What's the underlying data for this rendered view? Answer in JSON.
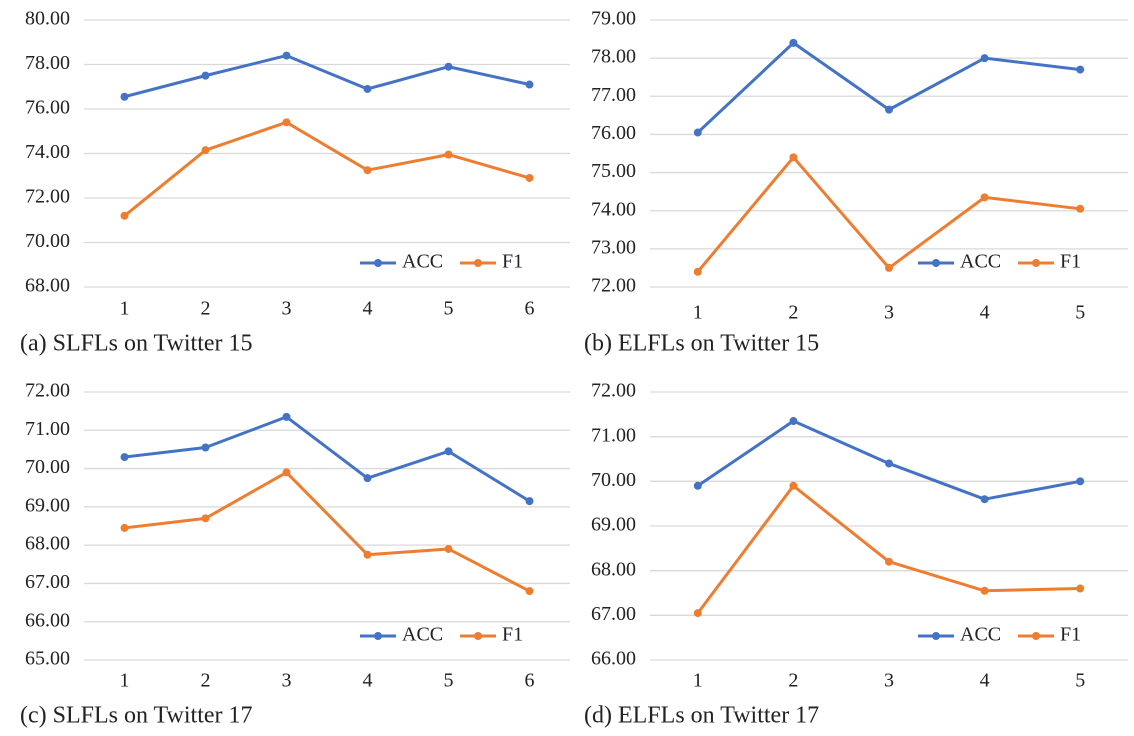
{
  "chart_data": [
    {
      "type": "line",
      "title": "(a) SLFLs on Twitter 15",
      "categories": [
        "1",
        "2",
        "3",
        "4",
        "5",
        "6"
      ],
      "series": [
        {
          "name": "ACC",
          "color": "#4472c4",
          "values": [
            76.55,
            77.5,
            78.4,
            76.9,
            77.9,
            77.1
          ]
        },
        {
          "name": "F1",
          "color": "#ed7d31",
          "values": [
            71.2,
            74.15,
            75.4,
            73.25,
            73.95,
            72.9
          ]
        }
      ],
      "ylim": [
        68,
        80
      ],
      "yticks": [
        {
          "value": 68,
          "label": "68.00"
        },
        {
          "value": 70,
          "label": "70.00"
        },
        {
          "value": 72,
          "label": "72.00"
        },
        {
          "value": 74,
          "label": "74.00"
        },
        {
          "value": 76,
          "label": "76.00"
        },
        {
          "value": 78,
          "label": "78.00"
        },
        {
          "value": 80,
          "label": "80.00"
        }
      ],
      "grid": true,
      "legend": "lower-right"
    },
    {
      "type": "line",
      "title": "(b) ELFLs on Twitter 15",
      "categories": [
        "1",
        "2",
        "3",
        "4",
        "5"
      ],
      "series": [
        {
          "name": "ACC",
          "color": "#4472c4",
          "values": [
            76.05,
            78.4,
            76.65,
            78.0,
            77.7
          ]
        },
        {
          "name": "F1",
          "color": "#ed7d31",
          "values": [
            72.4,
            75.4,
            72.5,
            74.35,
            74.05
          ]
        }
      ],
      "ylim": [
        72,
        79
      ],
      "yticks": [
        {
          "value": 72,
          "label": "72.00"
        },
        {
          "value": 73,
          "label": "73.00"
        },
        {
          "value": 74,
          "label": "74.00"
        },
        {
          "value": 75,
          "label": "75.00"
        },
        {
          "value": 76,
          "label": "76.00"
        },
        {
          "value": 77,
          "label": "77.00"
        },
        {
          "value": 78,
          "label": "78.00"
        },
        {
          "value": 79,
          "label": "79.00"
        }
      ],
      "grid": true,
      "legend": "lower-right"
    },
    {
      "type": "line",
      "title": "(c) SLFLs on Twitter 17",
      "categories": [
        "1",
        "2",
        "3",
        "4",
        "5",
        "6"
      ],
      "series": [
        {
          "name": "ACC",
          "color": "#4472c4",
          "values": [
            70.3,
            70.55,
            71.35,
            69.75,
            70.45,
            69.15
          ]
        },
        {
          "name": "F1",
          "color": "#ed7d31",
          "values": [
            68.45,
            68.7,
            69.9,
            67.75,
            67.9,
            66.8
          ]
        }
      ],
      "ylim": [
        65,
        72
      ],
      "yticks": [
        {
          "value": 65,
          "label": "65.00"
        },
        {
          "value": 66,
          "label": "66.00"
        },
        {
          "value": 67,
          "label": "67.00"
        },
        {
          "value": 68,
          "label": "68.00"
        },
        {
          "value": 69,
          "label": "69.00"
        },
        {
          "value": 70,
          "label": "70.00"
        },
        {
          "value": 71,
          "label": "71.00"
        },
        {
          "value": 72,
          "label": "72.00"
        }
      ],
      "grid": true,
      "legend": "lower-right"
    },
    {
      "type": "line",
      "title": "(d) ELFLs on Twitter 17",
      "categories": [
        "1",
        "2",
        "3",
        "4",
        "5"
      ],
      "series": [
        {
          "name": "ACC",
          "color": "#4472c4",
          "values": [
            69.9,
            71.35,
            70.4,
            69.6,
            70.0
          ]
        },
        {
          "name": "F1",
          "color": "#ed7d31",
          "values": [
            67.05,
            69.9,
            68.2,
            67.55,
            67.6
          ]
        }
      ],
      "ylim": [
        66,
        72
      ],
      "yticks": [
        {
          "value": 66,
          "label": "66.00"
        },
        {
          "value": 67,
          "label": "67.00"
        },
        {
          "value": 68,
          "label": "68.00"
        },
        {
          "value": 69,
          "label": "69.00"
        },
        {
          "value": 70,
          "label": "70.00"
        },
        {
          "value": 71,
          "label": "71.00"
        },
        {
          "value": 72,
          "label": "72.00"
        }
      ],
      "grid": true,
      "legend": "lower-right"
    }
  ]
}
